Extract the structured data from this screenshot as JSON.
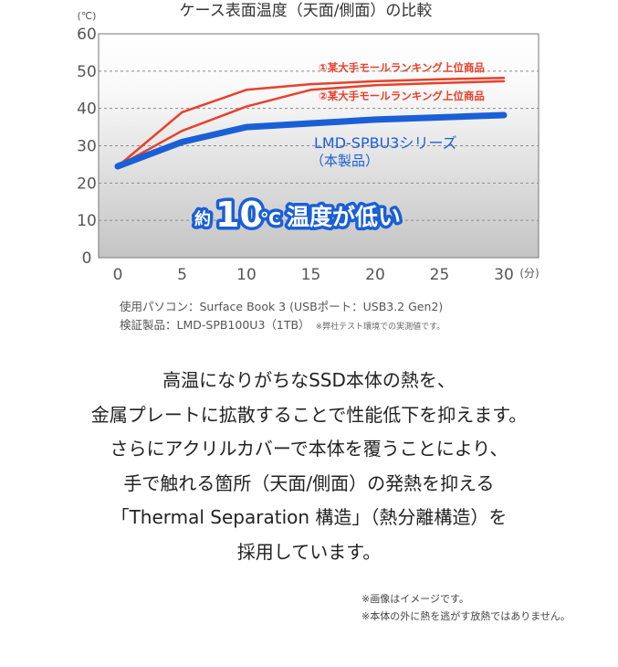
{
  "chart_data": {
    "type": "line",
    "title": "ケース表面温度（天面/側面）の比較",
    "yunit": "(℃)",
    "xunit": "(分)",
    "xlim": [
      0,
      30
    ],
    "ylim": [
      0,
      60
    ],
    "xticks": [
      "0",
      "5",
      "10",
      "15",
      "20",
      "25",
      "30"
    ],
    "yticks": [
      "0",
      "10",
      "20",
      "30",
      "40",
      "50",
      "60"
    ],
    "grid": "horizontal-dashed",
    "series": [
      {
        "name": "①某大手モールランキング上位商品",
        "color": "#e8402a",
        "x": [
          0,
          5,
          10,
          15,
          20,
          25,
          30
        ],
        "y": [
          24.5,
          39,
          45,
          46.5,
          47.3,
          47.8,
          48.2
        ]
      },
      {
        "name": "②某大手モールランキング上位商品",
        "color": "#e8402a",
        "x": [
          0,
          5,
          10,
          15,
          20,
          25,
          30
        ],
        "y": [
          24.5,
          34,
          40.5,
          45,
          46.2,
          46.8,
          47.3
        ]
      },
      {
        "name": "LMD-SPBU3シリーズ",
        "color": "#1a5fd6",
        "x": [
          0,
          5,
          10,
          15,
          20,
          25,
          30
        ],
        "y": [
          24.5,
          31,
          35,
          36,
          37,
          37.6,
          38.2
        ]
      }
    ],
    "lmd_sub": "（本製品）",
    "callout": {
      "prefix": "約",
      "value": "10",
      "unit": "℃",
      "text": "温度が低い"
    }
  },
  "notes": {
    "line1": "使用パソコン：Surface Book 3 (USBポート：USB3.2 Gen2)",
    "line2": "検証製品：LMD-SPB100U3（1TB）",
    "line2_small": "※弊社テスト環境での実測値です。"
  },
  "description": [
    "高温になりがちなSSD本体の熱を、",
    "金属プレートに拡散することで性能低下を抑えます。",
    "さらにアクリルカバーで本体を覆うことにより、",
    "手で触れる箇所（天面/側面）の発熱を抑える",
    "「Thermal Separation 構造」（熱分離構造）を",
    "採用しています。"
  ],
  "footnotes": [
    "※画像はイメージです。",
    "※本体の外に熱を逃がす放熱ではありません。"
  ]
}
